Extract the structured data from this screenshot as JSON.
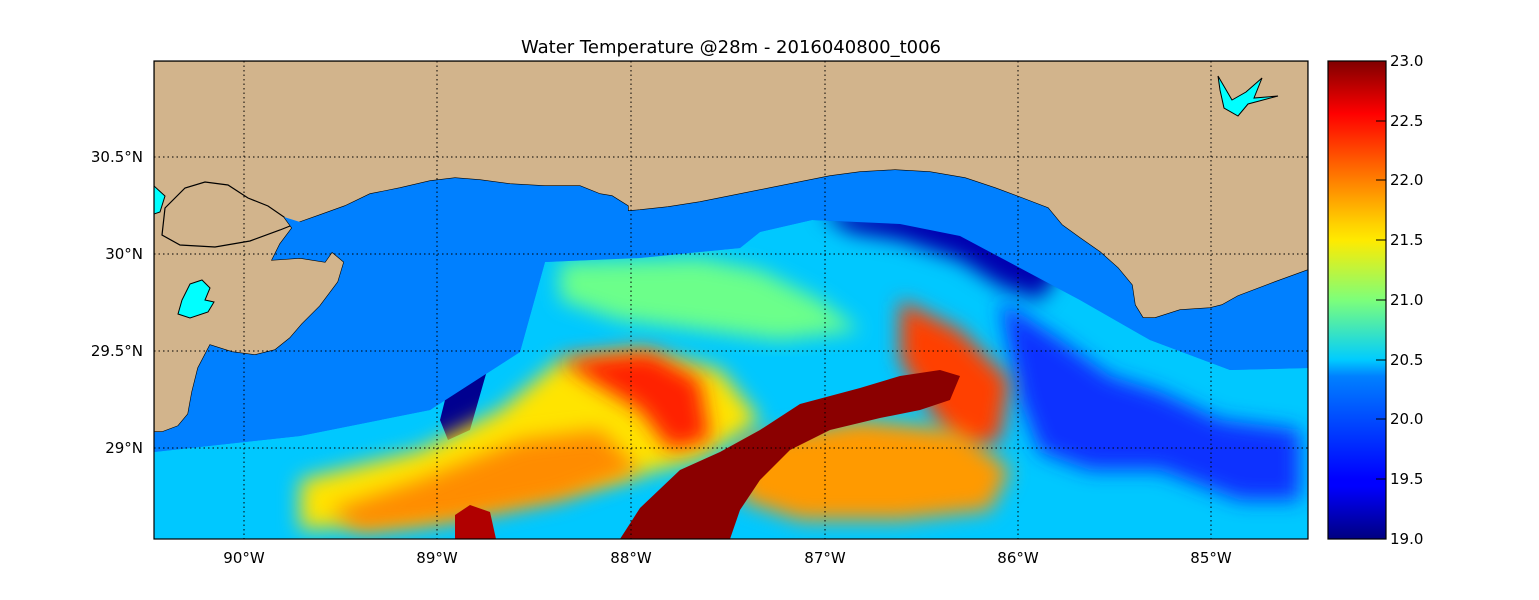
{
  "figure": {
    "title": "Water Temperature @28m - 2016040800_t006"
  },
  "map": {
    "land_color": "#d2b48c",
    "water_color": "#0080ff",
    "lake_color": "#00ffff",
    "grid_style": "dotted",
    "x_ticks": [
      {
        "label": "90°W",
        "lon": -90
      },
      {
        "label": "89°W",
        "lon": -89
      },
      {
        "label": "88°W",
        "lon": -88
      },
      {
        "label": "87°W",
        "lon": -87
      },
      {
        "label": "86°W",
        "lon": -86
      },
      {
        "label": "85°W",
        "lon": -85
      }
    ],
    "y_ticks": [
      {
        "label": "30.5°N",
        "lat": 30.5
      },
      {
        "label": "30°N",
        "lat": 30.0
      },
      {
        "label": "29.5°N",
        "lat": 29.5
      },
      {
        "label": "29°N",
        "lat": 29.0
      }
    ],
    "lon_range": [
      -90.47,
      -84.5
    ],
    "lat_range": [
      28.55,
      31.0
    ]
  },
  "colorbar": {
    "colormap": "jet",
    "min": 19.0,
    "max": 23.0,
    "ticks": [
      "23.0",
      "22.5",
      "22.0",
      "21.5",
      "21.0",
      "20.5",
      "20.0",
      "19.5",
      "19.0"
    ]
  }
}
